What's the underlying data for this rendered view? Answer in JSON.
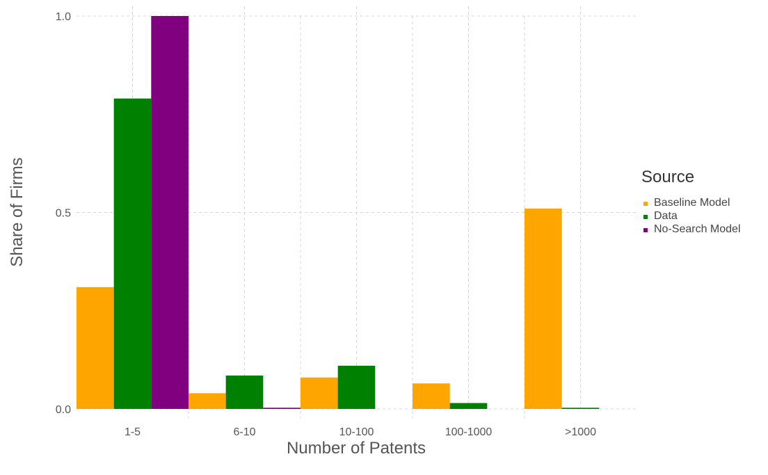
{
  "chart_data": {
    "type": "bar",
    "title": "",
    "xlabel": "Number of Patents",
    "ylabel": "Share of Firms",
    "categories": [
      "1-5",
      "6-10",
      "10-100",
      "100-1000",
      ">1000"
    ],
    "series": [
      {
        "name": "Baseline Model",
        "color": "#FFA500",
        "values": [
          0.31,
          0.04,
          0.08,
          0.065,
          0.51
        ]
      },
      {
        "name": "Data",
        "color": "#008000",
        "values": [
          0.79,
          0.085,
          0.11,
          0.015,
          0.003
        ]
      },
      {
        "name": "No-Search Model",
        "color": "#800080",
        "values": [
          1.0,
          0.003,
          0.0,
          0.0,
          0.0
        ]
      }
    ],
    "ylim": [
      0,
      1.0
    ],
    "yticks": [
      "0.0",
      "0.5",
      "1.0"
    ],
    "grid": true,
    "legend": {
      "title": "Source",
      "position": "right"
    }
  }
}
